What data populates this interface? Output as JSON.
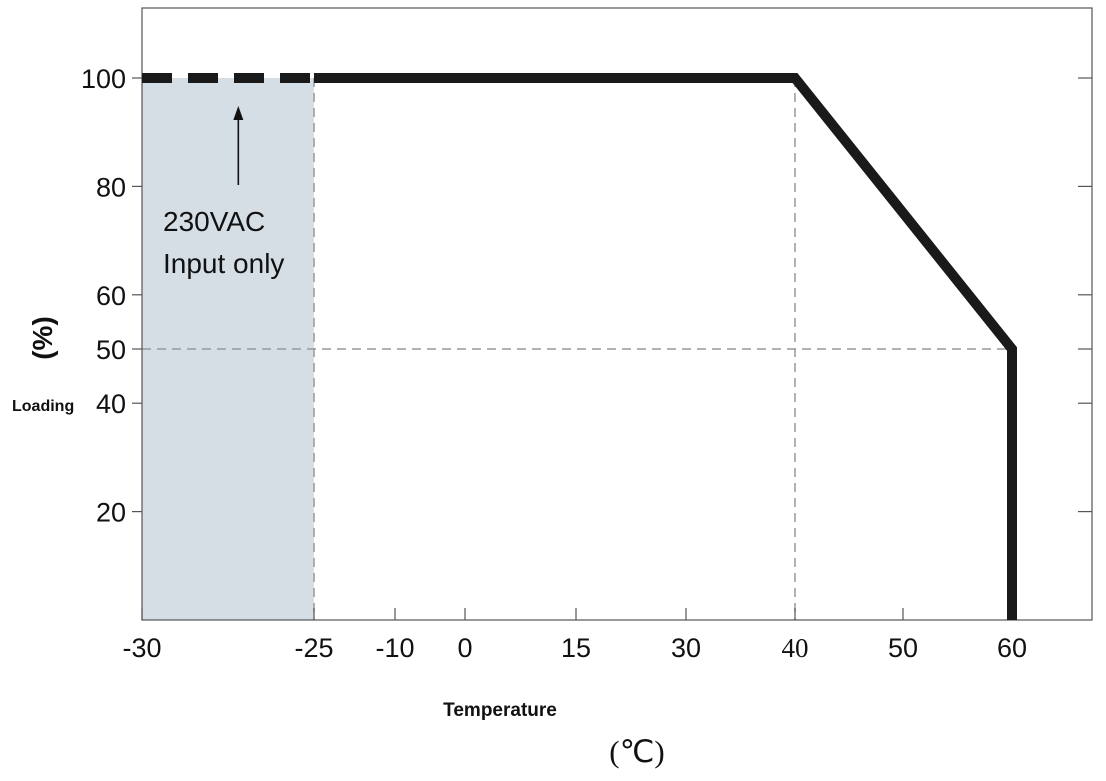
{
  "chart_data": {
    "type": "line",
    "x_ticks": [
      "-30",
      "-25",
      "-10",
      "0",
      "15",
      "30",
      "40",
      "50",
      "60"
    ],
    "y_ticks": [
      "100",
      "80",
      "60",
      "50",
      "40",
      "20"
    ],
    "xlabel": "Temperature",
    "xunit": "(℃)",
    "ylabel": "Loading",
    "yunit": "(%)",
    "xlim": [
      -30,
      70
    ],
    "ylim": [
      0,
      110
    ],
    "series": [
      {
        "style": "dashed",
        "x": [
          -30,
          -25
        ],
        "y": [
          100,
          100
        ]
      },
      {
        "style": "solid",
        "x": [
          -25,
          40,
          61,
          61
        ],
        "y": [
          100,
          100,
          50,
          0
        ]
      }
    ],
    "reference_lines": [
      {
        "axis": "x",
        "value": -25
      },
      {
        "axis": "x",
        "value": 40
      },
      {
        "axis": "y",
        "value": 50
      }
    ],
    "shaded_region": {
      "x": [
        -30,
        -25
      ]
    },
    "annotation": {
      "lines": [
        "230VAC",
        "Input only"
      ],
      "points_to": {
        "x": -27.2,
        "y": 100
      }
    },
    "colors": {
      "line": "#1a1a1a",
      "shade": "#d5dde5",
      "grid": "#999999",
      "frame": "#555555"
    }
  }
}
